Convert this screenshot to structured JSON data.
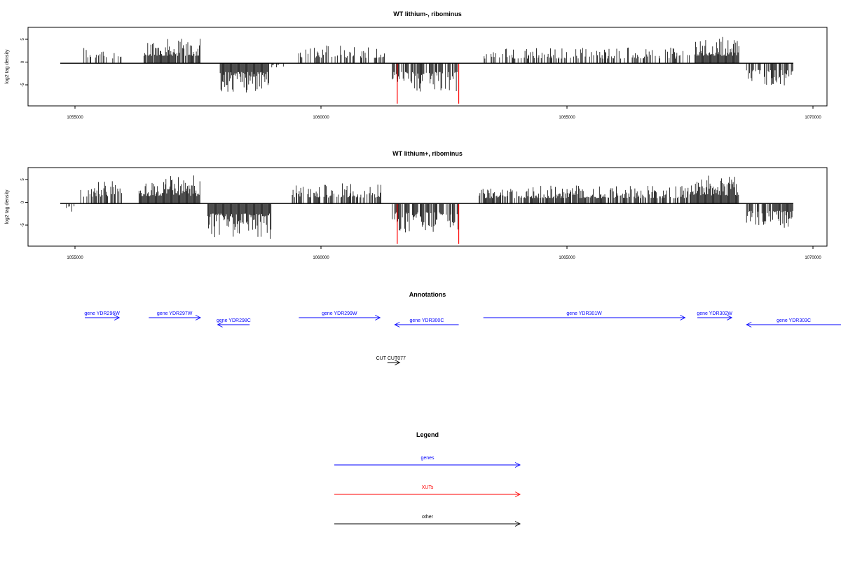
{
  "chart_data": [
    {
      "type": "bar",
      "title": "WT lithium-, ribominus",
      "ylabel": "log2 tag density",
      "xlim": [
        1054500,
        1070300
      ],
      "ylim": [
        -9.5,
        8
      ],
      "x_ticks": [
        "1055000",
        "1060000",
        "1065000",
        "1070000"
      ],
      "y_ticks": [
        "5",
        "0",
        "-5"
      ],
      "baseline": [
        1054700,
        1069600
      ],
      "blocks": [
        {
          "from": 1054750,
          "to": 1054800,
          "sign": -1,
          "density": 0.2,
          "amp": 1,
          "color": "#000000"
        },
        {
          "from": 1055150,
          "to": 1055650,
          "sign": 1,
          "density": 0.4,
          "amp": 4,
          "color": "#000000"
        },
        {
          "from": 1055750,
          "to": 1055950,
          "sign": 1,
          "density": 0.4,
          "amp": 3,
          "color": "#000000"
        },
        {
          "from": 1056400,
          "to": 1057550,
          "sign": 1,
          "density": 0.9,
          "amp": 5.5,
          "color": "#000000"
        },
        {
          "from": 1057950,
          "to": 1058950,
          "sign": -1,
          "density": 1,
          "amp": 6.5,
          "color": "#000000"
        },
        {
          "from": 1059000,
          "to": 1059300,
          "sign": -1,
          "density": 0.2,
          "amp": 1,
          "color": "#000000"
        },
        {
          "from": 1059550,
          "to": 1061300,
          "sign": 1,
          "density": 0.5,
          "amp": 4,
          "color": "#000000"
        },
        {
          "from": 1061450,
          "to": 1062800,
          "sign": -1,
          "density": 0.7,
          "amp": 6.5,
          "color": "#000000"
        },
        {
          "from": 1063300,
          "to": 1067500,
          "sign": 1,
          "density": 0.45,
          "amp": 3.5,
          "color": "#000000"
        },
        {
          "from": 1067600,
          "to": 1068500,
          "sign": 1,
          "density": 1,
          "amp": 5.5,
          "color": "#000000"
        },
        {
          "from": 1068650,
          "to": 1069600,
          "sign": -1,
          "density": 0.6,
          "amp": 5,
          "color": "#000000"
        }
      ],
      "highlight_bars": [
        {
          "x": 1061550,
          "y": -9,
          "color": "#ff0000"
        },
        {
          "x": 1062800,
          "y": -9,
          "color": "#ff0000"
        }
      ]
    },
    {
      "type": "bar",
      "title": "WT lithium+, ribominus",
      "ylabel": "log2 tag density",
      "xlim": [
        1054500,
        1070300
      ],
      "ylim": [
        -9.5,
        8
      ],
      "x_ticks": [
        "1055000",
        "1060000",
        "1065000",
        "1070000"
      ],
      "y_ticks": [
        "5",
        "0",
        "-5"
      ],
      "baseline": [
        1054700,
        1069600
      ],
      "blocks": [
        {
          "from": 1054700,
          "to": 1055000,
          "sign": -1,
          "density": 0.3,
          "amp": 2,
          "color": "#000000"
        },
        {
          "from": 1055100,
          "to": 1055950,
          "sign": 1,
          "density": 0.5,
          "amp": 5,
          "color": "#000000"
        },
        {
          "from": 1056300,
          "to": 1057550,
          "sign": 1,
          "density": 1,
          "amp": 5.5,
          "color": "#000000"
        },
        {
          "from": 1057700,
          "to": 1059000,
          "sign": -1,
          "density": 1,
          "amp": 7.5,
          "color": "#000000"
        },
        {
          "from": 1059400,
          "to": 1061300,
          "sign": 1,
          "density": 0.6,
          "amp": 4.5,
          "color": "#000000"
        },
        {
          "from": 1061450,
          "to": 1062800,
          "sign": -1,
          "density": 0.8,
          "amp": 6.5,
          "color": "#000000"
        },
        {
          "from": 1063200,
          "to": 1067500,
          "sign": 1,
          "density": 0.75,
          "amp": 4,
          "color": "#000000"
        },
        {
          "from": 1067500,
          "to": 1068500,
          "sign": 1,
          "density": 1,
          "amp": 6,
          "color": "#000000"
        },
        {
          "from": 1068650,
          "to": 1069600,
          "sign": -1,
          "density": 0.8,
          "amp": 5.5,
          "color": "#000000"
        }
      ],
      "highlight_bars": [
        {
          "x": 1061550,
          "y": -9,
          "color": "#ff0000"
        },
        {
          "x": 1062800,
          "y": -9,
          "color": "#ff0000"
        }
      ]
    }
  ],
  "annotations": {
    "title": "Annotations",
    "features": [
      {
        "label": "gene YDR296W",
        "start": 1055200,
        "end": 1055900,
        "strand": "+",
        "color": "#0000ff",
        "track": 1
      },
      {
        "label": "gene YDR297W",
        "start": 1056500,
        "end": 1057550,
        "strand": "+",
        "color": "#0000ff",
        "track": 1
      },
      {
        "label": "gene YDR298C",
        "start": 1057900,
        "end": 1058550,
        "strand": "-",
        "color": "#0000ff",
        "track": 2
      },
      {
        "label": "gene YDR299W",
        "start": 1059550,
        "end": 1061200,
        "strand": "+",
        "color": "#0000ff",
        "track": 1
      },
      {
        "label": "gene YDR300C",
        "start": 1061500,
        "end": 1062800,
        "strand": "-",
        "color": "#0000ff",
        "track": 2
      },
      {
        "label": "gene YDR301W",
        "start": 1063300,
        "end": 1067400,
        "strand": "+",
        "color": "#0000ff",
        "track": 1
      },
      {
        "label": "gene YDR302W",
        "start": 1067650,
        "end": 1068350,
        "strand": "+",
        "color": "#0000ff",
        "track": 1
      },
      {
        "label": "gene YDR303C",
        "start": 1068650,
        "end": 1070800,
        "strand": "-",
        "color": "#0000ff",
        "track": 2
      },
      {
        "label": "CUT CUT077",
        "start": 1061350,
        "end": 1061600,
        "strand": "+",
        "color": "#000000",
        "track": 3
      }
    ]
  },
  "legend": {
    "title": "Legend",
    "items": [
      {
        "label": "genes",
        "color": "#0000ff"
      },
      {
        "label": "XUTs",
        "color": "#ff0000"
      },
      {
        "label": "other",
        "color": "#000000"
      }
    ]
  }
}
